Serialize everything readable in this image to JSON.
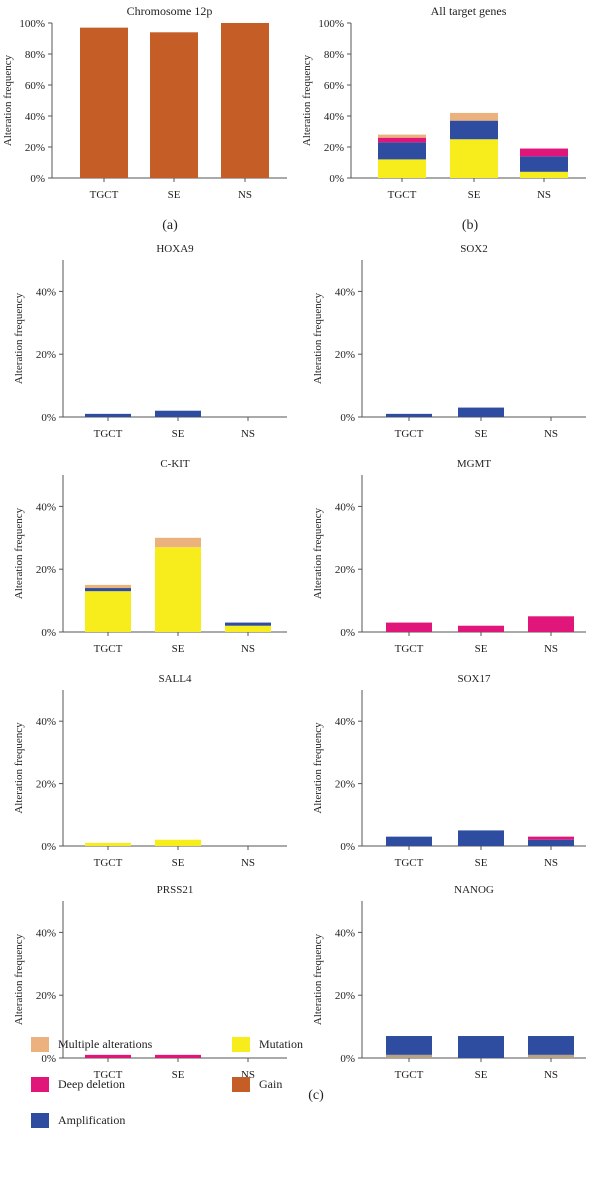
{
  "labels": {
    "a": "(a)",
    "b": "(b)",
    "c": "(c)"
  },
  "colors": {
    "multiple_alterations": "#ecb27e",
    "deep_deletion": "#e0167a",
    "amplification": "#2f4da0",
    "mutation": "#f7ed1c",
    "gain": "#c55e26",
    "unknown": "#b7a283",
    "axis": "#555555"
  },
  "legend": [
    {
      "key": "multiple_alterations",
      "label": "Multiple alterations"
    },
    {
      "key": "mutation",
      "label": "Mutation"
    },
    {
      "key": "deep_deletion",
      "label": "Deep deletion"
    },
    {
      "key": "gain",
      "label": "Gain"
    },
    {
      "key": "amplification",
      "label": "Amplification"
    }
  ],
  "chart_data": [
    {
      "id": "chrom12p",
      "panel": "a",
      "type": "bar",
      "title": "Chromosome 12p",
      "ylabel": "Alteration frequency",
      "categories": [
        "TGCT",
        "SE",
        "NS"
      ],
      "ylim": [
        0,
        100
      ],
      "yticks": [
        0,
        20,
        40,
        60,
        80,
        100
      ],
      "ytick_labels": [
        "0%",
        "20%",
        "40%",
        "60%",
        "80%",
        "100%"
      ],
      "series": [
        {
          "name": "Gain",
          "key": "gain",
          "values": [
            97,
            94,
            100
          ]
        }
      ]
    },
    {
      "id": "all",
      "panel": "b",
      "type": "bar",
      "stacked": true,
      "title": "All target genes",
      "ylabel": "Alteration frequency",
      "categories": [
        "TGCT",
        "SE",
        "NS"
      ],
      "ylim": [
        0,
        100
      ],
      "yticks": [
        0,
        20,
        40,
        60,
        80,
        100
      ],
      "ytick_labels": [
        "0%",
        "20%",
        "40%",
        "60%",
        "80%",
        "100%"
      ],
      "series": [
        {
          "name": "Mutation",
          "key": "mutation",
          "values": [
            12,
            25,
            4
          ]
        },
        {
          "name": "Amplification",
          "key": "amplification",
          "values": [
            11,
            12,
            10
          ]
        },
        {
          "name": "Deep deletion",
          "key": "deep_deletion",
          "values": [
            3,
            0,
            5
          ]
        },
        {
          "name": "Multiple alterations",
          "key": "multiple_alterations",
          "values": [
            2,
            5,
            0
          ]
        }
      ]
    },
    {
      "id": "hoxa9",
      "panel": "c",
      "type": "bar",
      "stacked": true,
      "title": "HOXA9",
      "ylabel": "Alteration frequency",
      "categories": [
        "TGCT",
        "SE",
        "NS"
      ],
      "ylim": [
        0,
        50
      ],
      "yticks": [
        0,
        20,
        40
      ],
      "ytick_labels": [
        "0%",
        "20%",
        "40%"
      ],
      "series": [
        {
          "name": "Amplification",
          "key": "amplification",
          "values": [
            1,
            2,
            0
          ]
        }
      ]
    },
    {
      "id": "sox2",
      "panel": "c",
      "type": "bar",
      "stacked": true,
      "title": "SOX2",
      "ylabel": "Alteration frequency",
      "categories": [
        "TGCT",
        "SE",
        "NS"
      ],
      "ylim": [
        0,
        50
      ],
      "yticks": [
        0,
        20,
        40
      ],
      "ytick_labels": [
        "0%",
        "20%",
        "40%"
      ],
      "series": [
        {
          "name": "Amplification",
          "key": "amplification",
          "values": [
            1,
            3,
            0
          ]
        }
      ]
    },
    {
      "id": "ckit",
      "panel": "c",
      "type": "bar",
      "stacked": true,
      "title": "C-KIT",
      "ylabel": "Alteration frequency",
      "categories": [
        "TGCT",
        "SE",
        "NS"
      ],
      "ylim": [
        0,
        50
      ],
      "yticks": [
        0,
        20,
        40
      ],
      "ytick_labels": [
        "0%",
        "20%",
        "40%"
      ],
      "series": [
        {
          "name": "Mutation",
          "key": "mutation",
          "values": [
            13,
            27,
            2
          ]
        },
        {
          "name": "Amplification",
          "key": "amplification",
          "values": [
            1,
            0,
            1
          ]
        },
        {
          "name": "Multiple alterations",
          "key": "multiple_alterations",
          "values": [
            1,
            3,
            0
          ]
        }
      ]
    },
    {
      "id": "mgmt",
      "panel": "c",
      "type": "bar",
      "stacked": true,
      "title": "MGMT",
      "ylabel": "Alteration frequency",
      "categories": [
        "TGCT",
        "SE",
        "NS"
      ],
      "ylim": [
        0,
        50
      ],
      "yticks": [
        0,
        20,
        40
      ],
      "ytick_labels": [
        "0%",
        "20%",
        "40%"
      ],
      "series": [
        {
          "name": "Deep deletion",
          "key": "deep_deletion",
          "values": [
            3,
            2,
            5
          ]
        }
      ]
    },
    {
      "id": "sall4",
      "panel": "c",
      "type": "bar",
      "stacked": true,
      "title": "SALL4",
      "ylabel": "Alteration frequency",
      "categories": [
        "TGCT",
        "SE",
        "NS"
      ],
      "ylim": [
        0,
        50
      ],
      "yticks": [
        0,
        20,
        40
      ],
      "ytick_labels": [
        "0%",
        "20%",
        "40%"
      ],
      "series": [
        {
          "name": "Mutation",
          "key": "mutation",
          "values": [
            1,
            2,
            0
          ]
        }
      ]
    },
    {
      "id": "sox17",
      "panel": "c",
      "type": "bar",
      "stacked": true,
      "title": "SOX17",
      "ylabel": "Alteration frequency",
      "categories": [
        "TGCT",
        "SE",
        "NS"
      ],
      "ylim": [
        0,
        50
      ],
      "yticks": [
        0,
        20,
        40
      ],
      "ytick_labels": [
        "0%",
        "20%",
        "40%"
      ],
      "series": [
        {
          "name": "Amplification",
          "key": "amplification",
          "values": [
            3,
            5,
            2
          ]
        },
        {
          "name": "Deep deletion",
          "key": "deep_deletion",
          "values": [
            0,
            0,
            1
          ]
        }
      ]
    },
    {
      "id": "prss21",
      "panel": "c",
      "type": "bar",
      "stacked": true,
      "title": "PRSS21",
      "ylabel": "Alteration frequency",
      "categories": [
        "TGCT",
        "SE",
        "NS"
      ],
      "ylim": [
        0,
        50
      ],
      "yticks": [
        0,
        20,
        40
      ],
      "ytick_labels": [
        "0%",
        "20%",
        "40%"
      ],
      "series": [
        {
          "name": "Deep deletion",
          "key": "deep_deletion",
          "values": [
            1,
            1,
            0
          ]
        }
      ]
    },
    {
      "id": "nanog",
      "panel": "c",
      "type": "bar",
      "stacked": true,
      "title": "NANOG",
      "ylabel": "Alteration frequency",
      "categories": [
        "TGCT",
        "SE",
        "NS"
      ],
      "ylim": [
        0,
        50
      ],
      "yticks": [
        0,
        20,
        40
      ],
      "ytick_labels": [
        "0%",
        "20%",
        "40%"
      ],
      "series": [
        {
          "key": "unknown",
          "values": [
            1,
            0,
            1
          ]
        },
        {
          "name": "Amplification",
          "key": "amplification",
          "values": [
            6,
            7,
            6
          ]
        }
      ]
    }
  ]
}
